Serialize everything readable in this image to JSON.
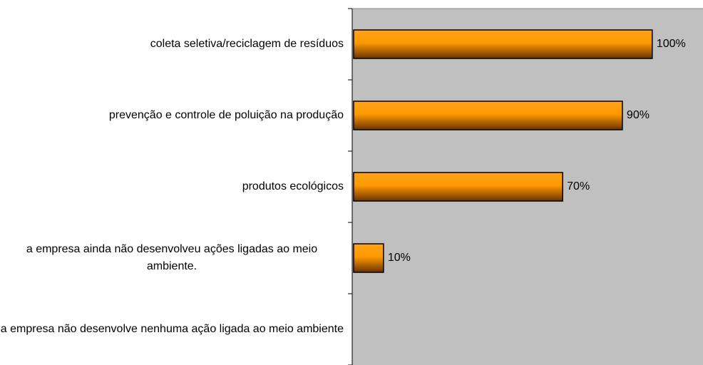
{
  "chart_data": {
    "type": "hbar",
    "categories": [
      "coleta seletiva/reciclagem de resíduos",
      "prevenção e controle de poluição na produção",
      "produtos ecológicos",
      "a empresa ainda não desenvolveu ações ligadas ao meio ambiente.",
      "a empresa não desenvolve nenhuma ação ligada ao meio ambiente"
    ],
    "values": [
      100,
      90,
      70,
      10,
      0
    ],
    "value_labels": [
      "100%",
      "90%",
      "70%",
      "10%",
      null
    ],
    "color": "#ff9900",
    "xlim": [
      0,
      117
    ],
    "plot_background": "#c0c0c0"
  }
}
